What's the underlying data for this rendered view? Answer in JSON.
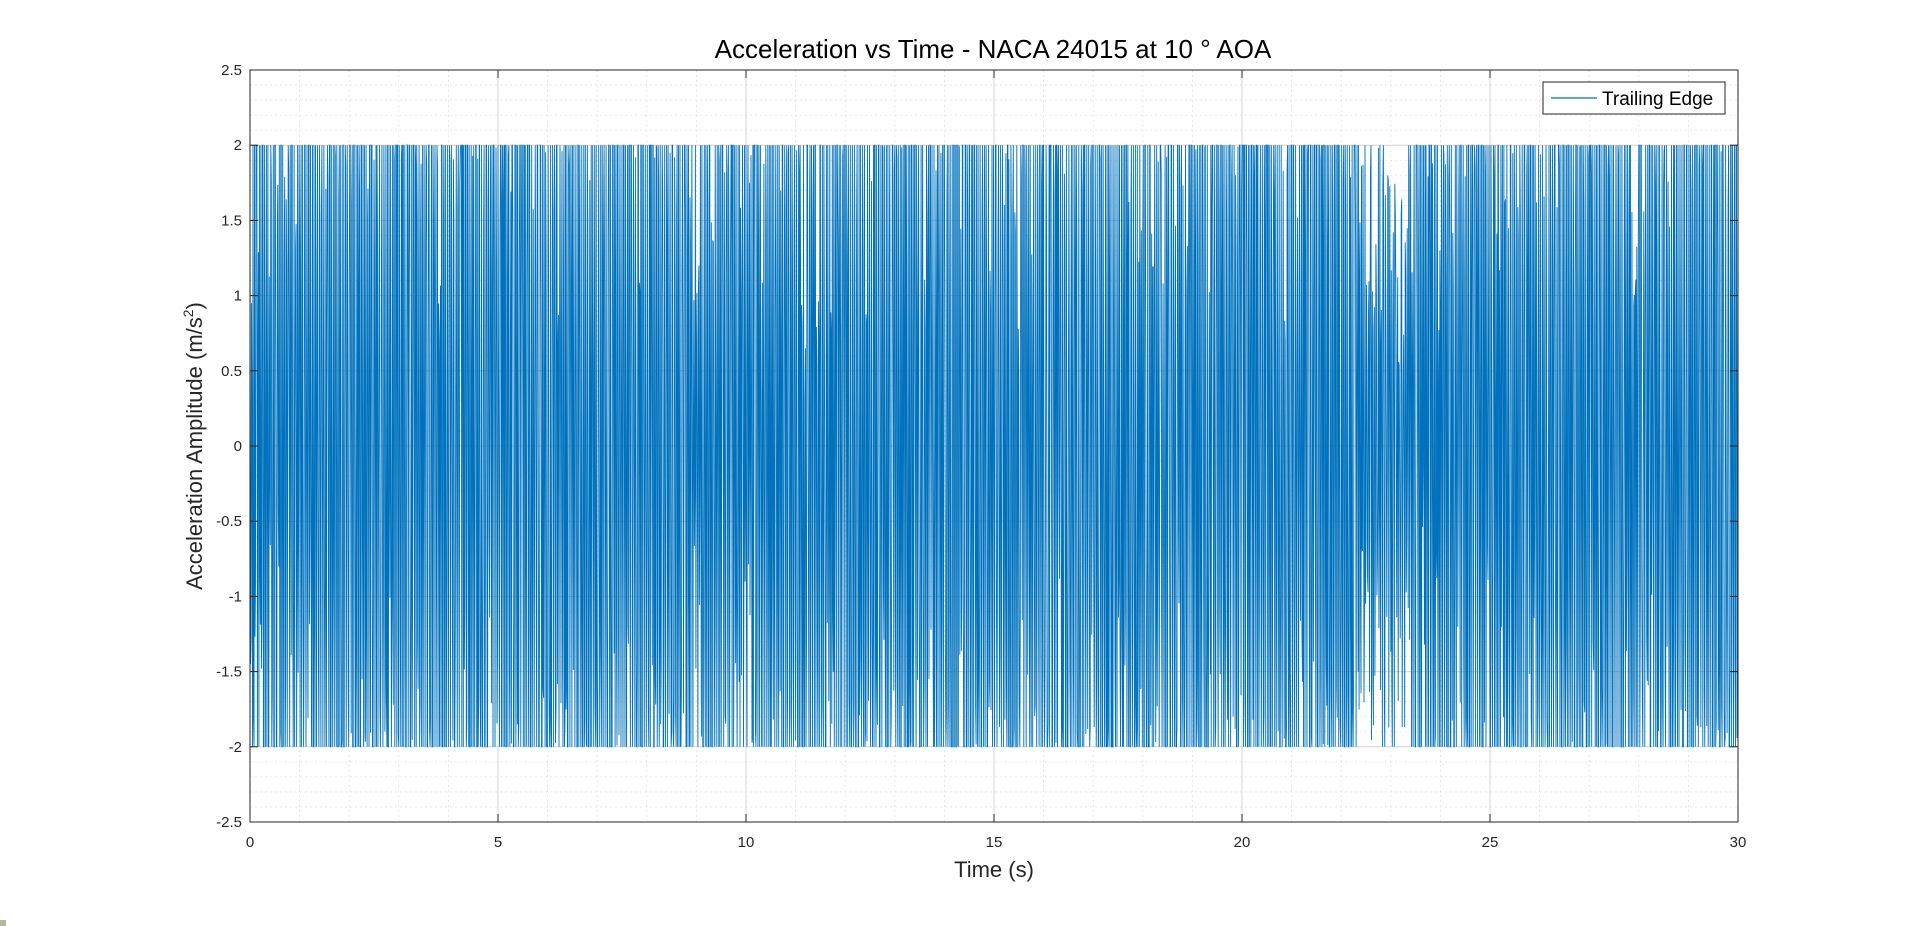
{
  "chart_data": {
    "type": "line",
    "title": "Acceleration vs Time - NACA 24015 at 10 ° AOA",
    "xlabel": "Time (s)",
    "ylabel_main": "Acceleration Amplitude (m/s",
    "ylabel_sup": "2",
    "ylabel_close": ")",
    "xlim": [
      0,
      30
    ],
    "ylim": [
      -2.5,
      2.5
    ],
    "xticks": [
      0,
      5,
      10,
      15,
      20,
      25,
      30
    ],
    "xtick_labels": [
      "0",
      "5",
      "10",
      "15",
      "20",
      "25",
      "30"
    ],
    "yticks": [
      2.5,
      2,
      1.5,
      1,
      0.5,
      0,
      -0.5,
      -1,
      -1.5,
      -2,
      -2.5
    ],
    "ytick_labels": [
      "2.5",
      "2",
      "1.5",
      "1",
      "0.5",
      "0",
      "-0.5",
      "-1",
      "-1.5",
      "-2",
      "-2.5"
    ],
    "grid": true,
    "minor_grid": true,
    "legend_position": "top-right",
    "series": [
      {
        "name": "Trailing Edge",
        "color": "#0072BD",
        "sample_interval_s": 0.01,
        "saturation_limits": [
          -2,
          2
        ],
        "description_values": "dense oscillating signal clipped at ±2 m/s² across 0–30 s"
      }
    ]
  }
}
